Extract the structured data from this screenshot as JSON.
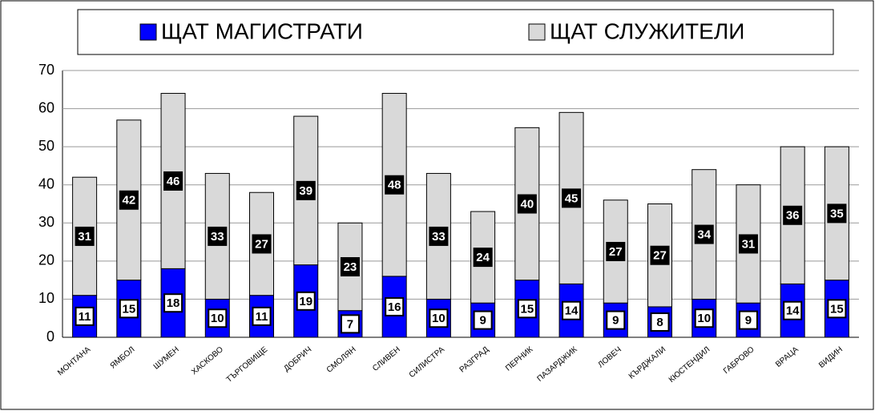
{
  "chart_data": {
    "type": "stacked_bar",
    "categories": [
      "МОНТАНА",
      "ЯМБОЛ",
      "ШУМЕН",
      "ХАСКОВО",
      "ТЪРГОВИЩЕ",
      "ДОБРИЧ",
      "СМОЛЯН",
      "СЛИВЕН",
      "СИЛИСТРА",
      "РАЗГРАД",
      "ПЕРНИК",
      "ПАЗАРДЖИК",
      "ЛОВЕЧ",
      "КЪРДЖАЛИ",
      "КЮСТЕНДИЛ",
      "ГАБРОВО",
      "ВРАЦА",
      "ВИДИН"
    ],
    "series": [
      {
        "name": "ЩАТ МАГИСТРАТИ",
        "color": "#0000ff",
        "values": [
          11,
          15,
          18,
          10,
          11,
          19,
          7,
          16,
          10,
          9,
          15,
          14,
          9,
          8,
          10,
          9,
          14,
          15
        ]
      },
      {
        "name": "ЩАТ СЛУЖИТЕЛИ",
        "color": "#d9d9d9",
        "values": [
          31,
          42,
          46,
          33,
          27,
          39,
          23,
          48,
          33,
          24,
          40,
          45,
          27,
          27,
          34,
          31,
          36,
          35
        ]
      }
    ],
    "ylim": [
      0,
      70
    ],
    "yticks": [
      0,
      10,
      20,
      30,
      40,
      50,
      60,
      70
    ],
    "grid": true
  }
}
